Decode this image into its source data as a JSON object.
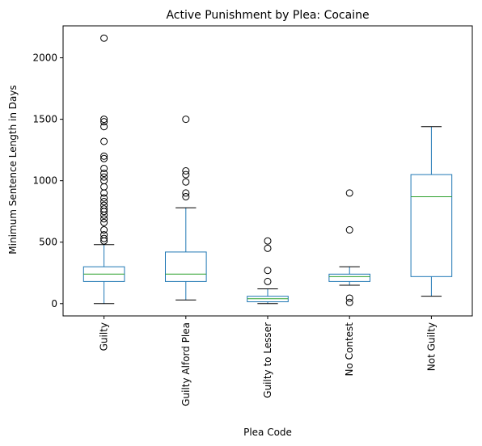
{
  "chart_data": {
    "type": "box",
    "title": "Active Punishment by Plea: Cocaine",
    "xlabel": "Plea Code",
    "ylabel": "Minimum Sentence Length in Days",
    "ylim": [
      -100,
      2260
    ],
    "yticks": [
      0,
      500,
      1000,
      1500,
      2000
    ],
    "grid": false,
    "colors": {
      "box": "#1f77b4",
      "median": "#2ca02c",
      "whisker": "#000000",
      "flier": "#000000"
    },
    "categories": [
      "Guilty",
      "Guilty Alford Plea",
      "Guilty to Lesser",
      "No Contest",
      "Not Guilty"
    ],
    "boxes": [
      {
        "category": "Guilty",
        "whisker_low": 0,
        "q1": 180,
        "median": 240,
        "q3": 300,
        "whisker_high": 480,
        "outliers": [
          510,
          530,
          560,
          600,
          660,
          690,
          720,
          750,
          770,
          800,
          830,
          860,
          900,
          950,
          1000,
          1030,
          1060,
          1100,
          1180,
          1200,
          1320,
          1440,
          1480,
          1500,
          2160
        ]
      },
      {
        "category": "Guilty Alford Plea",
        "whisker_low": 30,
        "q1": 180,
        "median": 240,
        "q3": 420,
        "whisker_high": 780,
        "outliers": [
          870,
          900,
          990,
          1050,
          1080,
          1500
        ]
      },
      {
        "category": "Guilty to Lesser",
        "whisker_low": 0,
        "q1": 15,
        "median": 40,
        "q3": 60,
        "whisker_high": 120,
        "outliers": [
          180,
          270,
          450,
          510
        ]
      },
      {
        "category": "No Contest",
        "whisker_low": 150,
        "q1": 180,
        "median": 220,
        "q3": 240,
        "whisker_high": 300,
        "outliers": [
          10,
          45,
          600,
          900
        ]
      },
      {
        "category": "Not Guilty",
        "whisker_low": 60,
        "q1": 220,
        "median": 870,
        "q3": 1050,
        "whisker_high": 1440,
        "outliers": []
      }
    ]
  }
}
